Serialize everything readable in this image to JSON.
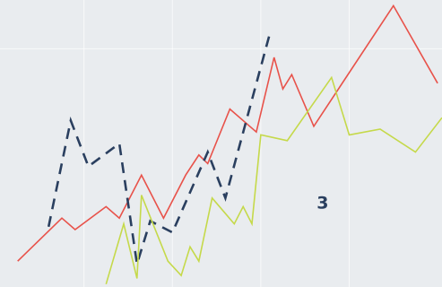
{
  "chart_data": {
    "type": "line",
    "grid": true,
    "legend": "none",
    "xlim": [
      0,
      100
    ],
    "ylim": [
      0,
      100
    ],
    "series": [
      {
        "color": "#e8524a",
        "dash": false,
        "x": [
          4,
          14,
          17,
          24,
          27,
          32,
          37,
          42,
          45,
          47,
          52,
          58,
          62,
          64,
          66,
          71,
          89,
          99
        ],
        "y": [
          9,
          24,
          20,
          28,
          24,
          39,
          24,
          39,
          46,
          43,
          62,
          54,
          80,
          69,
          74,
          56,
          98,
          71
        ]
      },
      {
        "color": "#2a3f5f",
        "dash": true,
        "x": [
          11,
          16,
          20,
          27,
          31,
          34,
          39,
          47,
          51,
          61
        ],
        "y": [
          21,
          58,
          42,
          50,
          8,
          23,
          19,
          47,
          31,
          88
        ]
      },
      {
        "color": "#c5d94a",
        "dash": false,
        "x": [
          24,
          28,
          31,
          32,
          38,
          41,
          43,
          45,
          48,
          53,
          55,
          57,
          59,
          65,
          75,
          79,
          86,
          94,
          100
        ],
        "y": [
          1,
          22,
          3,
          32,
          9,
          4,
          14,
          9,
          31,
          22,
          28,
          22,
          53,
          51,
          73,
          53,
          55,
          47,
          59
        ]
      }
    ],
    "annotations": [
      {
        "text": "3",
        "x": 73,
        "y": 29,
        "color": "#2a3f5f"
      }
    ]
  }
}
